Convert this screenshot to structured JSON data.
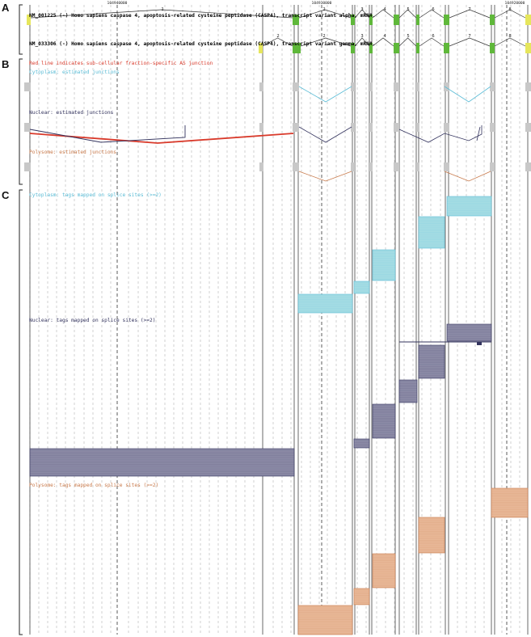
{
  "panels": {
    "a": "A",
    "b": "B",
    "c": "C"
  },
  "coordinates": [
    "104940000",
    "104930000",
    "104920000"
  ],
  "transcripts": [
    {
      "name": "NM_001225 (-) Homo sapiens caspase 4,  apoptosis-related cysteine peptidase (CASP4),  transcript variant alpha,  mRNA.",
      "exon_numbers": [
        "1",
        "2",
        "3",
        "4",
        "5",
        "6",
        "7",
        "8"
      ]
    },
    {
      "name": "NM_033306 (-) Homo sapiens caspase 4,  apoptosis-related cysteine peptidase (CASP4),  transcript variant gamma,  mRNA.",
      "exon_numbers": [
        "2",
        "2",
        "3",
        "4",
        "5",
        "6",
        "7",
        "8"
      ]
    }
  ],
  "panel_b": {
    "note": "Red line indicates sub-cellular fraction-specific AS junction",
    "tracks": [
      {
        "key": "cyto",
        "label": "Cytoplasm: estimated junctions",
        "color": "#5bbcd6"
      },
      {
        "key": "nuc",
        "label": "Nuclear: estimated junctions",
        "color": "#33335e"
      },
      {
        "key": "poly",
        "label": "Polysome: estimated junctions",
        "color": "#c8794a"
      }
    ],
    "specific_color": "#d93a2b"
  },
  "panel_c": {
    "tracks": [
      {
        "key": "cyto",
        "label": "Cytoplasm: tags mapped on splice sites (>=2)",
        "color": "#5bbcd6",
        "fill": "#a6dde4"
      },
      {
        "key": "nuc",
        "label": "Nuclear: tags mapped on splice sites (>=2)",
        "color": "#33335e",
        "fill": "#8d8ca7"
      },
      {
        "key": "poly",
        "label": "Polysome: tags mapped on splice sites (>=2)",
        "color": "#c8794a",
        "fill": "#e8b898"
      }
    ]
  },
  "colors": {
    "coding_exon": "#5fb83a",
    "utr_exon": "#e6e65c",
    "guide": "#b5b5b5",
    "boundary": "#444444"
  }
}
